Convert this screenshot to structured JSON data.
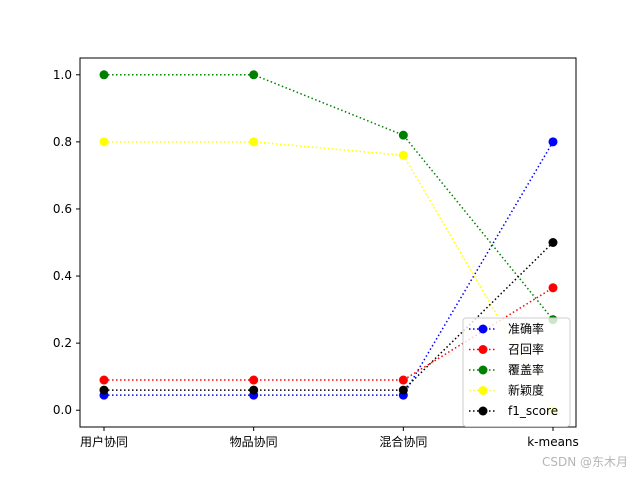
{
  "chart_data": {
    "type": "line",
    "categories": [
      "用户协同",
      "物品协同",
      "混合协同",
      "k-means"
    ],
    "ylim": [
      -0.05,
      1.05
    ],
    "yticks": [
      "0.0",
      "0.2",
      "0.4",
      "0.6",
      "0.8",
      "1.0"
    ],
    "grid": false,
    "legend_position": "bottom-right",
    "series": [
      {
        "name": "准确率",
        "color": "#0000ff",
        "values": [
          0.045,
          0.045,
          0.045,
          0.8
        ]
      },
      {
        "name": "召回率",
        "color": "#ff0000",
        "values": [
          0.09,
          0.09,
          0.09,
          0.365
        ]
      },
      {
        "name": "覆盖率",
        "color": "#008000",
        "values": [
          1.0,
          1.0,
          0.82,
          0.27
        ]
      },
      {
        "name": "新颖度",
        "color": "#ffff00",
        "values": [
          0.8,
          0.8,
          0.76,
          0.0
        ]
      },
      {
        "name": "f1_score",
        "color": "#000000",
        "values": [
          0.06,
          0.06,
          0.06,
          0.5
        ]
      }
    ]
  },
  "watermark": "CSDN @东木月"
}
